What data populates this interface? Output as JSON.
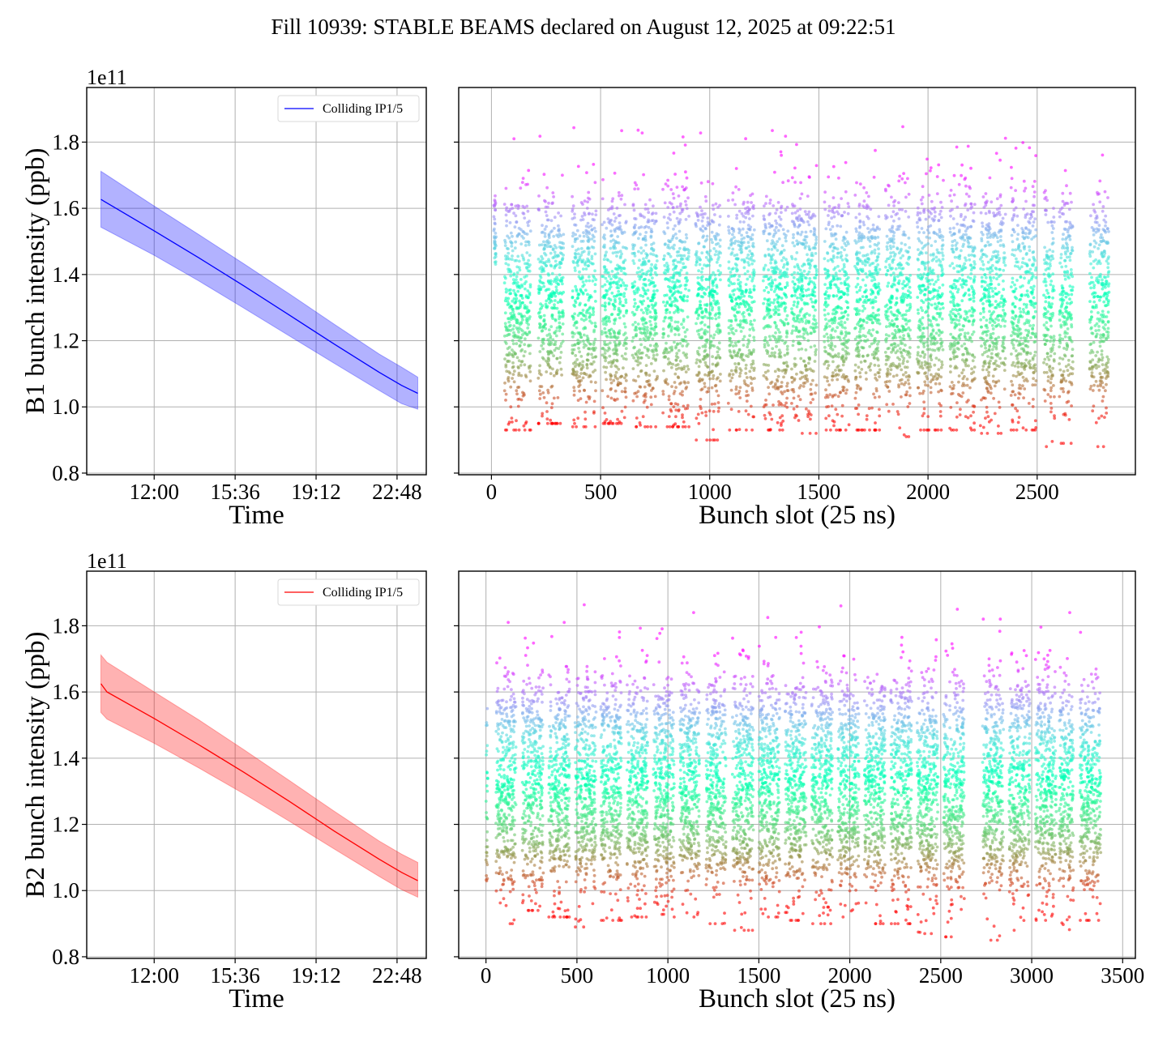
{
  "title": "Fill 10939: STABLE BEAMS declared on August 12, 2025 at 09:22:51",
  "colors": {
    "b1_line": "#0000ff",
    "b1_band": "#0000ff",
    "b2_line": "#ff0000",
    "b2_band": "#ff0000",
    "grid": "#b0b0b0",
    "colormap": "rainbow"
  },
  "chart_data": [
    {
      "id": "b1-time",
      "type": "line",
      "xlabel": "Time",
      "ylabel": "B1 bunch intensity (ppb)",
      "y_offset_label": "1e11",
      "x_tick_labels": [
        "12:00",
        "15:36",
        "19:12",
        "22:48"
      ],
      "x_ticks_hours": [
        12.0,
        15.6,
        19.2,
        22.8
      ],
      "xlim_hours": [
        9.0,
        24.1
      ],
      "y_tick_labels": [
        "0.8",
        "1.0",
        "1.2",
        "1.4",
        "1.6",
        "1.8"
      ],
      "y_ticks": [
        0.8,
        1.0,
        1.2,
        1.4,
        1.6,
        1.8
      ],
      "ylim": [
        0.795,
        1.965
      ],
      "grid": true,
      "legend": {
        "location": "upper right",
        "entries": [
          "Colliding IP1/5"
        ]
      },
      "series": [
        {
          "name": "Colliding IP1/5",
          "x_hours": [
            9.63,
            12.0,
            14.0,
            16.0,
            18.0,
            20.0,
            22.0,
            23.0,
            23.72
          ],
          "mean": [
            1.627,
            1.532,
            1.45,
            1.365,
            1.278,
            1.19,
            1.105,
            1.065,
            1.041
          ],
          "lower": [
            1.543,
            1.458,
            1.38,
            1.298,
            1.215,
            1.132,
            1.05,
            1.01,
            0.993
          ],
          "upper": [
            1.712,
            1.607,
            1.52,
            1.432,
            1.342,
            1.25,
            1.16,
            1.12,
            1.09
          ]
        }
      ]
    },
    {
      "id": "b1-slot",
      "type": "scatter",
      "xlabel": "Bunch slot (25 ns)",
      "ylabel": "",
      "x_tick_labels": [
        "0",
        "500",
        "1000",
        "1500",
        "2000",
        "2500"
      ],
      "x_ticks": [
        0,
        500,
        1000,
        1500,
        2000,
        2500
      ],
      "xlim": [
        -150,
        2950
      ],
      "ylim": [
        0.795,
        1.965
      ],
      "grid": true,
      "color_by": "intensity (rainbow colormap, red = low, purple = high)",
      "trains": [
        {
          "start": 10,
          "end": 22,
          "ymin": 1.43,
          "ymax": 1.64
        },
        {
          "start": 60,
          "end": 180,
          "ymin": 0.93,
          "ymax": 1.81
        },
        {
          "start": 215,
          "end": 330,
          "ymin": 0.95,
          "ymax": 1.83
        },
        {
          "start": 370,
          "end": 480,
          "ymin": 0.94,
          "ymax": 1.86
        },
        {
          "start": 505,
          "end": 620,
          "ymin": 0.95,
          "ymax": 1.84
        },
        {
          "start": 645,
          "end": 760,
          "ymin": 0.94,
          "ymax": 1.89
        },
        {
          "start": 785,
          "end": 905,
          "ymin": 0.94,
          "ymax": 1.85
        },
        {
          "start": 935,
          "end": 1050,
          "ymin": 0.9,
          "ymax": 1.87
        },
        {
          "start": 1085,
          "end": 1205,
          "ymin": 0.93,
          "ymax": 1.86
        },
        {
          "start": 1245,
          "end": 1360,
          "ymin": 0.93,
          "ymax": 1.85
        },
        {
          "start": 1375,
          "end": 1490,
          "ymin": 0.92,
          "ymax": 1.86
        },
        {
          "start": 1525,
          "end": 1640,
          "ymin": 0.93,
          "ymax": 1.9
        },
        {
          "start": 1665,
          "end": 1780,
          "ymin": 0.93,
          "ymax": 1.83
        },
        {
          "start": 1805,
          "end": 1920,
          "ymin": 0.91,
          "ymax": 1.92
        },
        {
          "start": 1950,
          "end": 2070,
          "ymin": 0.93,
          "ymax": 1.85
        },
        {
          "start": 2100,
          "end": 2215,
          "ymin": 0.93,
          "ymax": 1.86
        },
        {
          "start": 2240,
          "end": 2355,
          "ymin": 0.92,
          "ymax": 1.88
        },
        {
          "start": 2380,
          "end": 2495,
          "ymin": 0.93,
          "ymax": 1.87
        },
        {
          "start": 2530,
          "end": 2580,
          "ymin": 0.88,
          "ymax": 1.86
        },
        {
          "start": 2600,
          "end": 2665,
          "ymin": 0.89,
          "ymax": 1.84
        },
        {
          "start": 2740,
          "end": 2830,
          "ymin": 0.88,
          "ymax": 1.83
        }
      ]
    },
    {
      "id": "b2-time",
      "type": "line",
      "xlabel": "Time",
      "ylabel": "B2 bunch intensity (ppb)",
      "y_offset_label": "1e11",
      "x_tick_labels": [
        "12:00",
        "15:36",
        "19:12",
        "22:48"
      ],
      "x_ticks_hours": [
        12.0,
        15.6,
        19.2,
        22.8
      ],
      "xlim_hours": [
        9.0,
        24.1
      ],
      "y_tick_labels": [
        "0.8",
        "1.0",
        "1.2",
        "1.4",
        "1.6",
        "1.8"
      ],
      "y_ticks": [
        0.8,
        1.0,
        1.2,
        1.4,
        1.6,
        1.8
      ],
      "ylim": [
        0.795,
        1.965
      ],
      "grid": true,
      "legend": {
        "location": "upper right",
        "entries": [
          "Colliding IP1/5"
        ]
      },
      "series": [
        {
          "name": "Colliding IP1/5",
          "x_hours": [
            9.63,
            9.9,
            12.0,
            14.0,
            16.0,
            18.0,
            20.0,
            22.0,
            23.0,
            23.72
          ],
          "mean": [
            1.625,
            1.6,
            1.52,
            1.44,
            1.357,
            1.27,
            1.18,
            1.095,
            1.055,
            1.03
          ],
          "lower": [
            1.538,
            1.518,
            1.445,
            1.37,
            1.292,
            1.21,
            1.126,
            1.043,
            1.003,
            0.98
          ],
          "upper": [
            1.712,
            1.69,
            1.6,
            1.515,
            1.425,
            1.333,
            1.24,
            1.15,
            1.11,
            1.085
          ]
        }
      ]
    },
    {
      "id": "b2-slot",
      "type": "scatter",
      "xlabel": "Bunch slot (25 ns)",
      "ylabel": "",
      "x_tick_labels": [
        "0",
        "500",
        "1000",
        "1500",
        "2000",
        "2500",
        "3000",
        "3500"
      ],
      "x_ticks": [
        0,
        500,
        1000,
        1500,
        2000,
        2500,
        3000,
        3500
      ],
      "xlim": [
        -150,
        3570
      ],
      "ylim": [
        0.795,
        1.965
      ],
      "grid": true,
      "color_by": "intensity (rainbow colormap, red = low, purple = high)",
      "trains": [
        {
          "start": 0,
          "end": 10,
          "ymin": 1.0,
          "ymax": 1.58
        },
        {
          "start": 55,
          "end": 165,
          "ymin": 0.9,
          "ymax": 1.81
        },
        {
          "start": 200,
          "end": 315,
          "ymin": 0.94,
          "ymax": 1.8
        },
        {
          "start": 345,
          "end": 460,
          "ymin": 0.92,
          "ymax": 1.81
        },
        {
          "start": 490,
          "end": 605,
          "ymin": 0.89,
          "ymax": 1.87
        },
        {
          "start": 630,
          "end": 745,
          "ymin": 0.91,
          "ymax": 1.84
        },
        {
          "start": 775,
          "end": 890,
          "ymin": 0.92,
          "ymax": 1.85
        },
        {
          "start": 920,
          "end": 1035,
          "ymin": 0.92,
          "ymax": 1.85
        },
        {
          "start": 1065,
          "end": 1175,
          "ymin": 0.92,
          "ymax": 1.84
        },
        {
          "start": 1210,
          "end": 1320,
          "ymin": 0.9,
          "ymax": 1.84
        },
        {
          "start": 1355,
          "end": 1470,
          "ymin": 0.88,
          "ymax": 1.85
        },
        {
          "start": 1500,
          "end": 1615,
          "ymin": 0.92,
          "ymax": 1.85
        },
        {
          "start": 1645,
          "end": 1760,
          "ymin": 0.91,
          "ymax": 1.86
        },
        {
          "start": 1790,
          "end": 1905,
          "ymin": 0.9,
          "ymax": 1.89
        },
        {
          "start": 1935,
          "end": 2050,
          "ymin": 0.92,
          "ymax": 1.86
        },
        {
          "start": 2080,
          "end": 2195,
          "ymin": 0.9,
          "ymax": 1.83
        },
        {
          "start": 2225,
          "end": 2340,
          "ymin": 0.9,
          "ymax": 1.84
        },
        {
          "start": 2370,
          "end": 2485,
          "ymin": 0.87,
          "ymax": 1.87
        },
        {
          "start": 2515,
          "end": 2630,
          "ymin": 0.86,
          "ymax": 1.85
        },
        {
          "start": 2730,
          "end": 2845,
          "ymin": 0.85,
          "ymax": 1.82
        },
        {
          "start": 2875,
          "end": 2990,
          "ymin": 0.88,
          "ymax": 1.88
        },
        {
          "start": 3020,
          "end": 3135,
          "ymin": 0.91,
          "ymax": 1.89
        },
        {
          "start": 3150,
          "end": 3230,
          "ymin": 0.86,
          "ymax": 1.84
        },
        {
          "start": 3265,
          "end": 3380,
          "ymin": 0.91,
          "ymax": 1.82
        }
      ]
    }
  ]
}
